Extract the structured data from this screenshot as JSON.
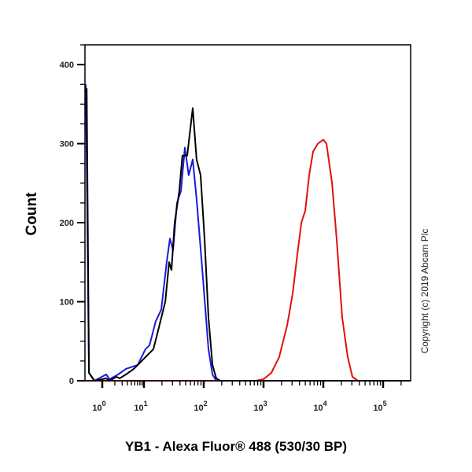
{
  "chart_data": {
    "type": "line",
    "title": "",
    "xlabel": "YB1 - Alexa Fluor® 488 (530/30 BP)",
    "ylabel": "Count",
    "x_scale": "log (biexponential)",
    "xlim": [
      0,
      289000
    ],
    "ylim": [
      0,
      425
    ],
    "x_ticks": [
      {
        "base": "10",
        "exp": "0"
      },
      {
        "base": "10",
        "exp": "1"
      },
      {
        "base": "10",
        "exp": "2"
      },
      {
        "base": "10",
        "exp": "3"
      },
      {
        "base": "10",
        "exp": "4"
      },
      {
        "base": "10",
        "exp": "5"
      }
    ],
    "y_ticks": [
      "0",
      "100",
      "200",
      "300",
      "400"
    ],
    "grid": false,
    "legend": "none",
    "annotation": "Copyright (c) 2019 Abcam Plc",
    "series": [
      {
        "color": "#000000",
        "x": [
          0.1,
          0.23,
          0.55,
          1.24,
          1.5,
          2.2,
          2.6,
          3.7,
          5.7,
          8.8,
          10.6,
          14.4,
          16.8,
          22.7,
          26.4,
          28.9,
          32.6,
          39,
          44,
          53,
          65.5,
          76,
          88.6,
          103,
          120,
          140,
          162,
          189,
          289000
        ],
        "y": [
          370,
          10,
          0,
          3,
          0,
          5,
          3,
          8,
          15,
          25,
          30,
          40,
          60,
          100,
          150,
          140,
          200,
          240,
          285,
          285,
          345,
          280,
          260,
          180,
          80,
          20,
          3,
          0,
          0
        ]
      },
      {
        "color": "#1a1adc",
        "x": [
          0.05,
          0.23,
          0.55,
          1.24,
          1.5,
          2.4,
          3.7,
          7.1,
          10.6,
          12.4,
          15.7,
          19.5,
          24,
          27.2,
          30.7,
          35.7,
          41.5,
          48.3,
          56,
          65.5,
          76,
          97,
          120,
          140,
          162,
          289000
        ],
        "y": [
          375,
          10,
          0,
          8,
          2,
          8,
          15,
          20,
          40,
          45,
          75,
          90,
          150,
          180,
          165,
          225,
          240,
          295,
          260,
          280,
          230,
          130,
          40,
          8,
          0,
          0
        ]
      },
      {
        "color": "#e01010",
        "x": [
          0,
          738,
          1000,
          1350,
          1830,
          2480,
          3070,
          3680,
          4290,
          4980,
          5800,
          6740,
          8090,
          10000,
          11300,
          14000,
          16700,
          20700,
          25600,
          30700,
          37900,
          289000
        ],
        "y": [
          0,
          0,
          2,
          10,
          30,
          70,
          110,
          160,
          200,
          215,
          260,
          290,
          300,
          305,
          300,
          250,
          180,
          80,
          30,
          5,
          0,
          0
        ]
      }
    ]
  }
}
